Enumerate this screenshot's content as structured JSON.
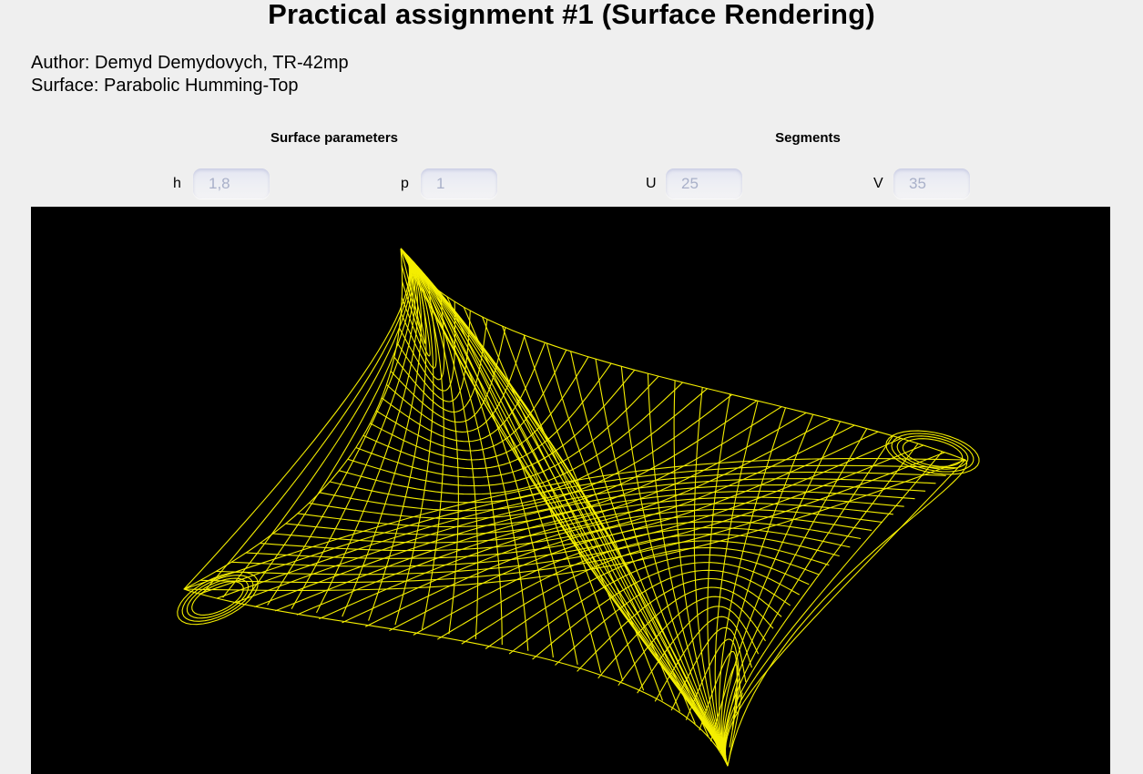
{
  "page": {
    "title": "Practical assignment #1 (Surface Rendering)",
    "author_line": "Author: Demyd Demydovych, TR-42mp",
    "surface_line": "Surface: Parabolic Humming-Top"
  },
  "controls": {
    "surface_parameters_title": "Surface parameters",
    "segments_title": "Segments",
    "h": {
      "label": "h",
      "value": "1,8"
    },
    "p": {
      "label": "p",
      "value": "1"
    },
    "u": {
      "label": "U",
      "value": "25"
    },
    "v": {
      "label": "V",
      "value": "35"
    }
  },
  "render": {
    "wire_color": "#f4ee00",
    "background_color": "#000000"
  }
}
